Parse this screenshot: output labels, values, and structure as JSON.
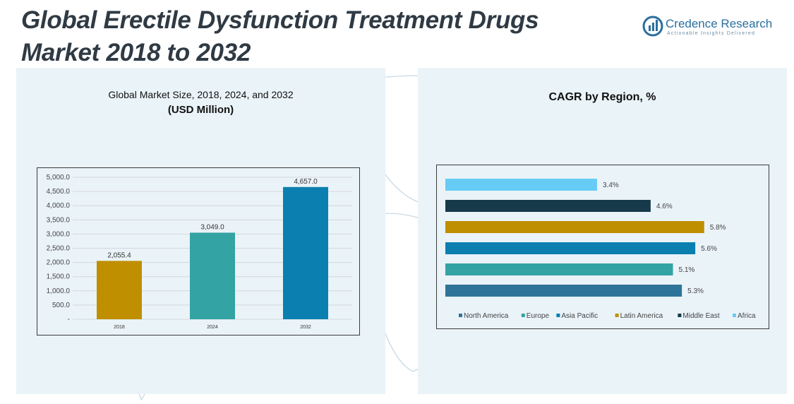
{
  "header": {
    "title": "Global Erectile Dysfunction Treatment Drugs Market 2018 to 2032"
  },
  "logo": {
    "name": "Credence Research",
    "tagline": "Actionable Insights Delivered",
    "color": "#2a6fa0"
  },
  "chart_data": [
    {
      "type": "bar",
      "title": "Global Market Size, 2018, 2024, and 2032",
      "subtitle": "(USD Million)",
      "categories": [
        "2018",
        "2024",
        "2032"
      ],
      "values": [
        2055.4,
        3049.0,
        4657.0
      ],
      "data_labels": [
        "2,055.4",
        "3,049.0",
        "4,657.0"
      ],
      "colors": [
        "#bf8f00",
        "#33a3a3",
        "#0a7fb0"
      ],
      "ylim": [
        0,
        5000
      ],
      "yticks": [
        0,
        500,
        1000,
        1500,
        2000,
        2500,
        3000,
        3500,
        4000,
        4500,
        5000
      ],
      "ytick_labels": [
        "-",
        "500.0",
        "1,000.0",
        "1,500.0",
        "2,000.0",
        "2,500.0",
        "3,000.0",
        "3,500.0",
        "4,000.0",
        "4,500.0",
        "5,000.0"
      ],
      "grid": true
    },
    {
      "type": "bar",
      "orientation": "horizontal",
      "title": "CAGR by Region, %",
      "series": [
        {
          "name": "North America",
          "value": 5.3,
          "label": "5.3%",
          "color": "#2e7498"
        },
        {
          "name": "Europe",
          "value": 5.1,
          "label": "5.1%",
          "color": "#33a3a3"
        },
        {
          "name": "Asia Pacific",
          "value": 5.6,
          "label": "5.6%",
          "color": "#0a7fb0"
        },
        {
          "name": "Latin America",
          "value": 5.8,
          "label": "5.8%",
          "color": "#bf8f00"
        },
        {
          "name": "Middle East",
          "value": 4.6,
          "label": "4.6%",
          "color": "#173a4a"
        },
        {
          "name": "Africa",
          "value": 3.4,
          "label": "3.4%",
          "color": "#66ccf5"
        }
      ],
      "xlim": [
        0,
        6.8
      ],
      "grid": false,
      "legend": "bottom"
    }
  ]
}
